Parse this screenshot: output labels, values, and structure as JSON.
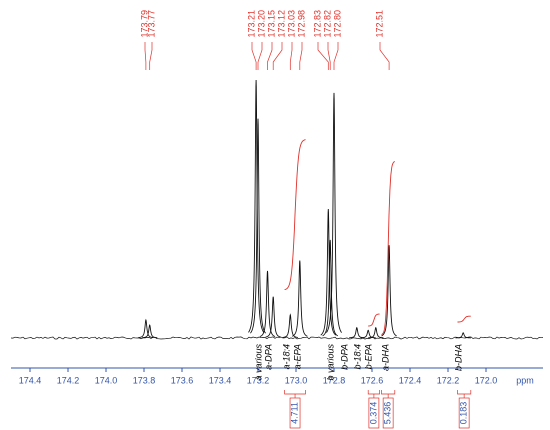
{
  "chart_data": {
    "type": "nmr",
    "x_label": "ppm",
    "xlim": [
      174.5,
      171.7
    ],
    "xticks": [
      174.4,
      174.2,
      {
        "value": 174,
        "label": "174.0"
      },
      173.8,
      173.6,
      173.4,
      173.2,
      {
        "value": 173,
        "label": "173.0"
      },
      172.8,
      172.6,
      172.4,
      172.2,
      {
        "value": 172,
        "label": "172.0"
      }
    ],
    "ylim": [
      0,
      100
    ],
    "shifts": {
      "x": [
        173.79,
        173.77,
        173.21,
        173.2,
        173.15,
        173.12,
        173.03,
        172.98,
        172.83,
        172.82,
        172.8,
        172.51
      ],
      "value_labels": [
        "173.79",
        "173.77",
        "173.21",
        "173.20",
        "173.15",
        "173.12",
        "173.03",
        "172.98",
        "172.83",
        "172.82",
        "172.80",
        "172.51"
      ],
      "heights": [
        7,
        5,
        100,
        85,
        26,
        16,
        9,
        30,
        50,
        38,
        95,
        36
      ]
    },
    "minor_peaks": {
      "x": [
        172.68,
        172.62,
        172.58,
        172.12
      ],
      "heights": [
        4,
        3,
        4,
        2
      ]
    },
    "assignments": [
      "a various",
      "a-DPA",
      "a-18:4",
      "a-EPA",
      "b various",
      "b-DPA",
      "b-18:4",
      "b-EPA",
      "a-DHA",
      "b-DHA"
    ],
    "integrals": [
      {
        "value": 4.711,
        "from": 173.06,
        "to": 172.95
      },
      {
        "value": 0.374,
        "from": 172.62,
        "to": 172.56
      },
      {
        "value": 5.436,
        "from": 172.55,
        "to": 172.48
      },
      {
        "value": 0.183,
        "from": 172.15,
        "to": 172.08
      }
    ],
    "line_color": "#111111",
    "annotation_color": "#e0302a",
    "axis_color": "#3355aa"
  }
}
